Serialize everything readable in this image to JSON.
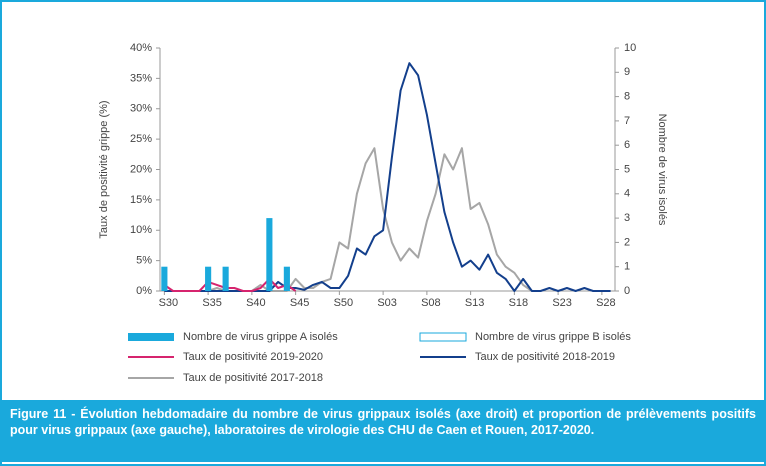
{
  "chart_data": {
    "type": "bar-line",
    "title": "Figure 11 - Évolution hebdomadaire du nombre de virus grippaux isolés (axe droit) et proportion de prélèvements positifs pour virus grippaux (axe gauche), laboratoires de virologie des CHU de Caen et Rouen, 2017-2020.",
    "y_label": "Taux de positivité grippe (%)",
    "y2_label": "Nombre de virus isolés",
    "categories": [
      "S30",
      null,
      null,
      null,
      null,
      "S35",
      null,
      null,
      null,
      null,
      "S40",
      null,
      null,
      null,
      null,
      "S45",
      null,
      null,
      null,
      null,
      "S50",
      null,
      null,
      null,
      null,
      "S03",
      null,
      null,
      null,
      null,
      "S08",
      null,
      null,
      null,
      null,
      "S13",
      null,
      null,
      null,
      null,
      "S18",
      null,
      null,
      null,
      null,
      "S23",
      null,
      null,
      null,
      null,
      "S28",
      null
    ],
    "ylim": [
      0,
      40
    ],
    "yticks": [
      {
        "value": 0,
        "label": "0%"
      },
      {
        "value": 5,
        "label": "5%"
      },
      {
        "value": 10,
        "label": "10%"
      },
      {
        "value": 15,
        "label": "15%"
      },
      {
        "value": 20,
        "label": "20%"
      },
      {
        "value": 25,
        "label": "25%"
      },
      {
        "value": 30,
        "label": "30%"
      },
      {
        "value": 35,
        "label": "35%"
      },
      {
        "value": 40,
        "label": "40%"
      }
    ],
    "y2lim": [
      0,
      10
    ],
    "y2ticks": [
      0,
      1,
      2,
      3,
      4,
      5,
      6,
      7,
      8,
      9,
      10
    ],
    "series": [
      {
        "name": "Nombre de virus grippe A isolés",
        "type": "bar",
        "axis": "y2",
        "color": "#1aa9dc",
        "values": [
          1,
          0,
          0,
          0,
          0,
          1,
          0,
          1,
          0,
          0,
          0,
          0,
          3,
          0,
          1,
          null,
          null,
          null,
          null,
          null,
          null,
          null,
          null,
          null,
          null,
          null,
          null,
          null,
          null,
          null,
          null,
          null,
          null,
          null,
          null,
          null,
          null,
          null,
          null,
          null,
          null,
          null,
          null,
          null,
          null,
          null,
          null,
          null,
          null,
          null,
          null,
          null
        ]
      },
      {
        "name": "Nombre de virus grippe B isolés",
        "type": "bar-outline",
        "axis": "y2",
        "color": "#1aa9dc",
        "values": [
          0,
          0,
          0,
          0,
          0,
          0,
          0,
          0,
          0,
          0,
          0,
          0,
          0,
          0,
          0,
          null,
          null,
          null,
          null,
          null,
          null,
          null,
          null,
          null,
          null,
          null,
          null,
          null,
          null,
          null,
          null,
          null,
          null,
          null,
          null,
          null,
          null,
          null,
          null,
          null,
          null,
          null,
          null,
          null,
          null,
          null,
          null,
          null,
          null,
          null,
          null,
          null
        ]
      },
      {
        "name": "Taux de positivité 2019-2020",
        "type": "line",
        "color": "#d6246e",
        "values": [
          1,
          0,
          0,
          0,
          0,
          1.5,
          1,
          0.5,
          0.5,
          0,
          0,
          0.5,
          2,
          0.5,
          1,
          0,
          null,
          null,
          null,
          null,
          null,
          null,
          null,
          null,
          null,
          null,
          null,
          null,
          null,
          null,
          null,
          null,
          null,
          null,
          null,
          null,
          null,
          null,
          null,
          null,
          null,
          null,
          null,
          null,
          null,
          null,
          null,
          null,
          null,
          null,
          null,
          null
        ]
      },
      {
        "name": "Taux de positivité 2018-2019",
        "type": "line",
        "color": "#133f8c",
        "values": [
          0,
          0,
          0,
          0,
          0,
          0,
          0,
          0,
          0,
          0,
          0,
          0,
          0,
          1.5,
          0.5,
          0.5,
          0.2,
          1,
          1.5,
          0.5,
          0.5,
          2.5,
          7,
          6,
          9,
          10,
          22,
          33,
          37.5,
          35.5,
          29,
          21,
          13,
          8,
          4,
          5,
          3.5,
          6,
          3,
          2,
          0,
          2,
          0,
          0,
          0.5,
          0,
          0.5,
          0,
          0.5,
          0,
          0,
          0
        ]
      },
      {
        "name": "Taux de positivité 2017-2018",
        "type": "line",
        "color": "#a6a6a6",
        "values": [
          0,
          0,
          0,
          0,
          0,
          0,
          0.5,
          0,
          0,
          0,
          0,
          1,
          0,
          0,
          0,
          2,
          0.5,
          0.5,
          1.5,
          2,
          8,
          7,
          16,
          21,
          23.5,
          13.5,
          8,
          5,
          7,
          5.5,
          11.5,
          16,
          22.5,
          20,
          23.5,
          13.5,
          14.5,
          11,
          6,
          4,
          3,
          1,
          0,
          null,
          null,
          null,
          null,
          null,
          null,
          null,
          null,
          null
        ]
      }
    ]
  }
}
